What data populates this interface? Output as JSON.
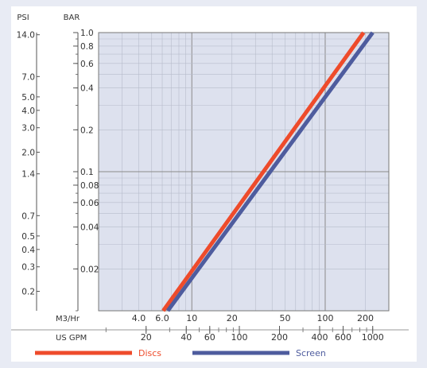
{
  "chart_data": {
    "type": "line",
    "scale": "log-log",
    "y_left_label": "PSI",
    "y_right_label": "BAR",
    "psi_ticks": [
      {
        "label": "14.0",
        "bar": 0.965
      },
      {
        "label": "7.0",
        "bar": 0.483
      },
      {
        "label": "5.0",
        "bar": 0.345
      },
      {
        "label": "4.0",
        "bar": 0.276
      },
      {
        "label": "3.0",
        "bar": 0.207
      },
      {
        "label": "2.0",
        "bar": 0.138
      },
      {
        "label": "1.4",
        "bar": 0.0965
      },
      {
        "label": "0.7",
        "bar": 0.0483
      },
      {
        "label": "0.5",
        "bar": 0.0345
      },
      {
        "label": "0.4",
        "bar": 0.0276
      },
      {
        "label": "0.3",
        "bar": 0.0207
      },
      {
        "label": "0.2",
        "bar": 0.0138
      }
    ],
    "bar_ticks": [
      {
        "label": "1.0",
        "bar": 1.0
      },
      {
        "label": "0.8",
        "bar": 0.8
      },
      {
        "label": "0.6",
        "bar": 0.6
      },
      {
        "label": "0.4",
        "bar": 0.4
      },
      {
        "label": "0.2",
        "bar": 0.2
      },
      {
        "label": "0.1",
        "bar": 0.1
      },
      {
        "label": "0.08",
        "bar": 0.08
      },
      {
        "label": "0.06",
        "bar": 0.06
      },
      {
        "label": "0.04",
        "bar": 0.04
      },
      {
        "label": "0.02",
        "bar": 0.02
      }
    ],
    "m3_label": "M3/Hr",
    "m3_ticks": [
      {
        "label": "4.0",
        "value": 4
      },
      {
        "label": "6.0",
        "value": 6
      },
      {
        "label": "10",
        "value": 10
      },
      {
        "label": "20",
        "value": 20
      },
      {
        "label": "50",
        "value": 50
      },
      {
        "label": "100",
        "value": 100
      },
      {
        "label": "200",
        "value": 200
      }
    ],
    "gpm_label": "US GPM",
    "gpm_ticks": [
      {
        "label": "20",
        "value": 20
      },
      {
        "label": "40",
        "value": 40
      },
      {
        "label": "60",
        "value": 60
      },
      {
        "label": "100",
        "value": 100
      },
      {
        "label": "200",
        "value": 200
      },
      {
        "label": "400",
        "value": 400
      },
      {
        "label": "600",
        "value": 600
      },
      {
        "label": "1000",
        "value": 1000
      }
    ],
    "xlim_m3": [
      2,
      300
    ],
    "ylim_bar": [
      0.01,
      1.0
    ],
    "series": [
      {
        "name": "Discs",
        "color": "#ee4b2b",
        "points": [
          {
            "m3": 6.1,
            "bar": 0.01
          },
          {
            "m3": 194,
            "bar": 1.0
          }
        ]
      },
      {
        "name": "Screen",
        "color": "#4e5c9e",
        "points": [
          {
            "m3": 6.6,
            "bar": 0.01
          },
          {
            "m3": 227,
            "bar": 1.0
          }
        ]
      }
    ],
    "legend_position": "bottom",
    "grid": true
  }
}
